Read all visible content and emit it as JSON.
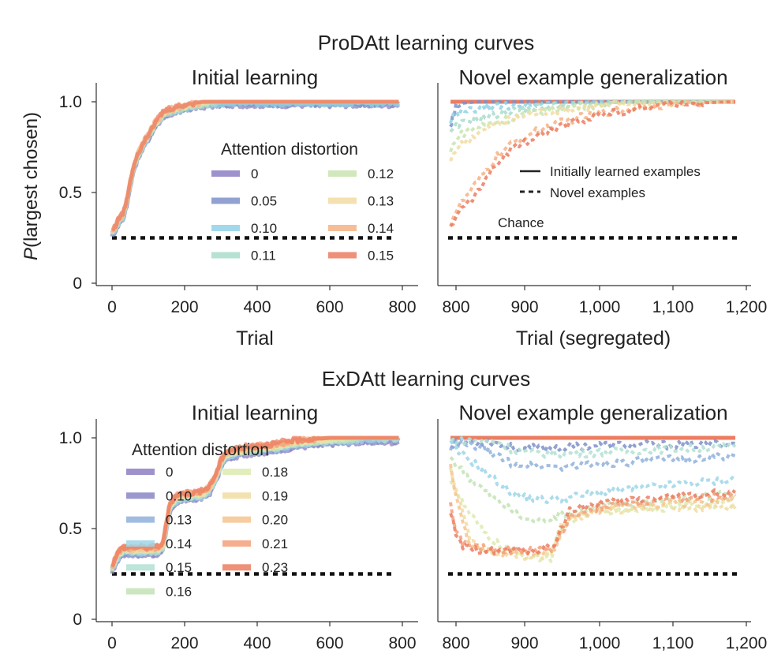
{
  "figure": {
    "top_title": "ProDAtt learning curves",
    "bottom_title": "ExDAtt learning curves",
    "ylabel_italic": "P",
    "ylabel_rest": "(largest chosen)",
    "chance_label": "Chance",
    "line_legend": {
      "solid": "Initially learned examples",
      "dashed": "Novel examples"
    }
  },
  "chart_data": [
    {
      "type": "line",
      "id": "prodatt_initial",
      "title": "Initial learning",
      "xlabel": "Trial",
      "xlim": [
        0,
        800
      ],
      "ylim": [
        0,
        1
      ],
      "xticks": [
        0,
        200,
        400,
        600,
        800
      ],
      "xtick_labels": [
        "0",
        "200",
        "400",
        "600",
        "800"
      ],
      "yticks": [
        0,
        0.5,
        1.0
      ],
      "ytick_labels": [
        "0",
        "0.5",
        "1.0"
      ],
      "chance": 0.25,
      "legend_title": "Attention distortion",
      "series": [
        {
          "name": "0",
          "color": "#8e7fc3"
        },
        {
          "name": "0.05",
          "color": "#7e91c9"
        },
        {
          "name": "0.10",
          "color": "#8fd3e6"
        },
        {
          "name": "0.11",
          "color": "#a9dccb"
        },
        {
          "name": "0.12",
          "color": "#c8e4b0"
        },
        {
          "name": "0.13",
          "color": "#f1dca2"
        },
        {
          "name": "0.14",
          "color": "#f6b185"
        },
        {
          "name": "0.15",
          "color": "#ec7d61"
        }
      ],
      "curve": {
        "x": [
          0,
          10,
          20,
          30,
          40,
          50,
          60,
          70,
          80,
          90,
          100,
          110,
          120,
          130,
          140,
          150,
          160,
          180,
          200,
          220,
          250,
          300,
          400,
          500,
          600,
          700,
          790
        ],
        "y": [
          0.28,
          0.31,
          0.35,
          0.37,
          0.44,
          0.55,
          0.64,
          0.7,
          0.74,
          0.78,
          0.81,
          0.85,
          0.88,
          0.9,
          0.93,
          0.94,
          0.95,
          0.96,
          0.97,
          0.98,
          0.99,
          1.0,
          1.0,
          1.0,
          1.0,
          1.0,
          1.0
        ]
      }
    },
    {
      "type": "line",
      "id": "prodatt_novel",
      "title": "Novel example generalization",
      "xlabel": "Trial (segregated)",
      "xlim": [
        790,
        1200
      ],
      "ylim": [
        0,
        1
      ],
      "xticks": [
        800,
        900,
        1000,
        1100,
        1200
      ],
      "xtick_labels": [
        "800",
        "900",
        "1,000",
        "1,100",
        "1,200"
      ],
      "chance": 0.25,
      "solid_y": 1.0,
      "novel_series": [
        {
          "color": "#7e91c9",
          "x": [
            792,
            795,
            800,
            810,
            830,
            1185
          ],
          "y": [
            0.87,
            0.92,
            0.97,
            0.99,
            1.0,
            1.0
          ]
        },
        {
          "color": "#8fd3e6",
          "x": [
            792,
            800,
            820,
            850,
            880,
            920,
            1000,
            1185
          ],
          "y": [
            0.9,
            0.93,
            0.95,
            0.97,
            0.98,
            0.99,
            1.0,
            1.0
          ]
        },
        {
          "color": "#a9dccb",
          "x": [
            792,
            800,
            820,
            850,
            880,
            920,
            980,
            1050,
            1185
          ],
          "y": [
            0.82,
            0.86,
            0.9,
            0.92,
            0.95,
            0.97,
            0.99,
            1.0,
            1.0
          ]
        },
        {
          "color": "#c8e4b0",
          "x": [
            792,
            800,
            820,
            850,
            880,
            920,
            980,
            1050,
            1185
          ],
          "y": [
            0.72,
            0.8,
            0.85,
            0.88,
            0.91,
            0.95,
            0.98,
            1.0,
            1.0
          ]
        },
        {
          "color": "#f1dca2",
          "x": [
            792,
            800,
            820,
            850,
            880,
            920,
            980,
            1050,
            1185
          ],
          "y": [
            0.68,
            0.74,
            0.8,
            0.86,
            0.9,
            0.94,
            0.97,
            0.99,
            1.0
          ]
        },
        {
          "color": "#f6b185",
          "x": [
            792,
            800,
            820,
            840,
            860,
            880,
            900,
            930,
            960,
            1000,
            1050,
            1100,
            1185
          ],
          "y": [
            0.33,
            0.4,
            0.5,
            0.6,
            0.7,
            0.76,
            0.81,
            0.86,
            0.9,
            0.94,
            0.97,
            0.99,
            1.0
          ]
        },
        {
          "color": "#ec7d61",
          "x": [
            792,
            800,
            820,
            840,
            860,
            880,
            900,
            930,
            960,
            1000,
            1050,
            1100,
            1185
          ],
          "y": [
            0.3,
            0.37,
            0.45,
            0.55,
            0.66,
            0.73,
            0.78,
            0.83,
            0.88,
            0.93,
            0.96,
            0.99,
            1.0
          ]
        }
      ]
    },
    {
      "type": "line",
      "id": "exdatt_initial",
      "title": "Initial learning",
      "xlim": [
        0,
        800
      ],
      "ylim": [
        0,
        1
      ],
      "xticks": [
        0,
        200,
        400,
        600,
        800
      ],
      "xtick_labels": [
        "0",
        "200",
        "400",
        "600",
        "800"
      ],
      "yticks": [
        0,
        0.5,
        1.0
      ],
      "ytick_labels": [
        "0",
        "0.5",
        "1.0"
      ],
      "chance": 0.25,
      "legend_title": "Attention distortion",
      "series": [
        {
          "name": "0",
          "color": "#8e7fc3"
        },
        {
          "name": "0.10",
          "color": "#8a86c4"
        },
        {
          "name": "0.13",
          "color": "#8fb2dc"
        },
        {
          "name": "0.14",
          "color": "#9ed6e7"
        },
        {
          "name": "0.15",
          "color": "#b1e0d3"
        },
        {
          "name": "0.16",
          "color": "#c3e3b5"
        },
        {
          "name": "0.18",
          "color": "#dcebb0"
        },
        {
          "name": "0.19",
          "color": "#f1dca2"
        },
        {
          "name": "0.20",
          "color": "#f6c48e"
        },
        {
          "name": "0.21",
          "color": "#f3a07a"
        },
        {
          "name": "0.23",
          "color": "#ec7d61"
        }
      ],
      "curve": {
        "x": [
          0,
          10,
          20,
          30,
          50,
          80,
          120,
          140,
          150,
          160,
          170,
          180,
          200,
          220,
          250,
          270,
          290,
          300,
          310,
          320,
          340,
          360,
          400,
          450,
          500,
          600,
          700,
          790
        ],
        "y": [
          0.28,
          0.33,
          0.36,
          0.38,
          0.38,
          0.38,
          0.38,
          0.4,
          0.52,
          0.62,
          0.65,
          0.67,
          0.68,
          0.68,
          0.69,
          0.72,
          0.8,
          0.86,
          0.9,
          0.91,
          0.92,
          0.93,
          0.94,
          0.95,
          0.97,
          0.99,
          1.0,
          1.0
        ]
      }
    },
    {
      "type": "line",
      "id": "exdatt_novel",
      "title": "Novel example generalization",
      "xlim": [
        790,
        1200
      ],
      "ylim": [
        0,
        1
      ],
      "xticks": [
        800,
        900,
        1000,
        1100,
        1200
      ],
      "xtick_labels": [
        "800",
        "900",
        "1,000",
        "1,100",
        "1,200"
      ],
      "chance": 0.25,
      "solid_y": 1.0,
      "novel_series": [
        {
          "color": "#7e91c9",
          "x": [
            792,
            800,
            850,
            880,
            900,
            950,
            1000,
            1100,
            1185
          ],
          "y": [
            0.96,
            0.98,
            0.98,
            0.95,
            0.94,
            0.95,
            0.96,
            0.96,
            0.97
          ]
        },
        {
          "color": "#8fb2dc",
          "x": [
            792,
            800,
            840,
            860,
            880,
            900,
            950,
            1000,
            1100,
            1185
          ],
          "y": [
            0.95,
            0.97,
            0.94,
            0.9,
            0.86,
            0.85,
            0.84,
            0.86,
            0.88,
            0.9
          ]
        },
        {
          "color": "#9ed6e7",
          "x": [
            792,
            800,
            820,
            840,
            860,
            880,
            900,
            930,
            960,
            1000,
            1100,
            1185
          ],
          "y": [
            0.97,
            0.93,
            0.88,
            0.82,
            0.76,
            0.7,
            0.67,
            0.66,
            0.67,
            0.7,
            0.74,
            0.77
          ]
        },
        {
          "color": "#b1e0d3",
          "x": [
            792,
            800,
            860,
            880,
            900,
            950,
            1000,
            1100,
            1185
          ],
          "y": [
            0.98,
            0.99,
            0.98,
            0.94,
            0.92,
            0.91,
            0.92,
            0.94,
            0.95
          ]
        },
        {
          "color": "#c3e3b5",
          "x": [
            792,
            800,
            820,
            850,
            880,
            900,
            920,
            950,
            1000,
            1100,
            1185
          ],
          "y": [
            0.9,
            0.85,
            0.78,
            0.68,
            0.6,
            0.55,
            0.54,
            0.58,
            0.62,
            0.66,
            0.7
          ]
        },
        {
          "color": "#dcebb0",
          "x": [
            792,
            800,
            820,
            840,
            860,
            880,
            900,
            920,
            935,
            945,
            960,
            1000,
            1100,
            1185
          ],
          "y": [
            0.78,
            0.7,
            0.58,
            0.48,
            0.42,
            0.38,
            0.35,
            0.34,
            0.34,
            0.45,
            0.55,
            0.6,
            0.62,
            0.64
          ]
        },
        {
          "color": "#f1dca2",
          "x": [
            792,
            800,
            810,
            820,
            840,
            860,
            880,
            900,
            920,
            935,
            950,
            980,
            1000,
            1100,
            1185
          ],
          "y": [
            0.82,
            0.72,
            0.58,
            0.45,
            0.37,
            0.36,
            0.35,
            0.35,
            0.34,
            0.36,
            0.52,
            0.58,
            0.6,
            0.62,
            0.61
          ]
        },
        {
          "color": "#f6c48e",
          "x": [
            792,
            800,
            810,
            820,
            840,
            860,
            880,
            900,
            920,
            940,
            960,
            1000,
            1050,
            1100,
            1185
          ],
          "y": [
            0.85,
            0.68,
            0.52,
            0.42,
            0.38,
            0.37,
            0.37,
            0.37,
            0.37,
            0.38,
            0.55,
            0.6,
            0.62,
            0.64,
            0.65
          ]
        },
        {
          "color": "#f3a07a",
          "x": [
            792,
            800,
            810,
            820,
            840,
            860,
            880,
            900,
            920,
            940,
            960,
            1000,
            1050,
            1100,
            1185
          ],
          "y": [
            0.65,
            0.48,
            0.42,
            0.4,
            0.39,
            0.38,
            0.38,
            0.38,
            0.38,
            0.4,
            0.57,
            0.62,
            0.64,
            0.66,
            0.68
          ]
        },
        {
          "color": "#ec7d61",
          "x": [
            792,
            800,
            810,
            820,
            840,
            860,
            880,
            900,
            920,
            940,
            960,
            1000,
            1050,
            1100,
            1185
          ],
          "y": [
            0.6,
            0.45,
            0.4,
            0.38,
            0.38,
            0.38,
            0.38,
            0.38,
            0.38,
            0.42,
            0.6,
            0.64,
            0.66,
            0.68,
            0.7
          ]
        }
      ]
    }
  ]
}
